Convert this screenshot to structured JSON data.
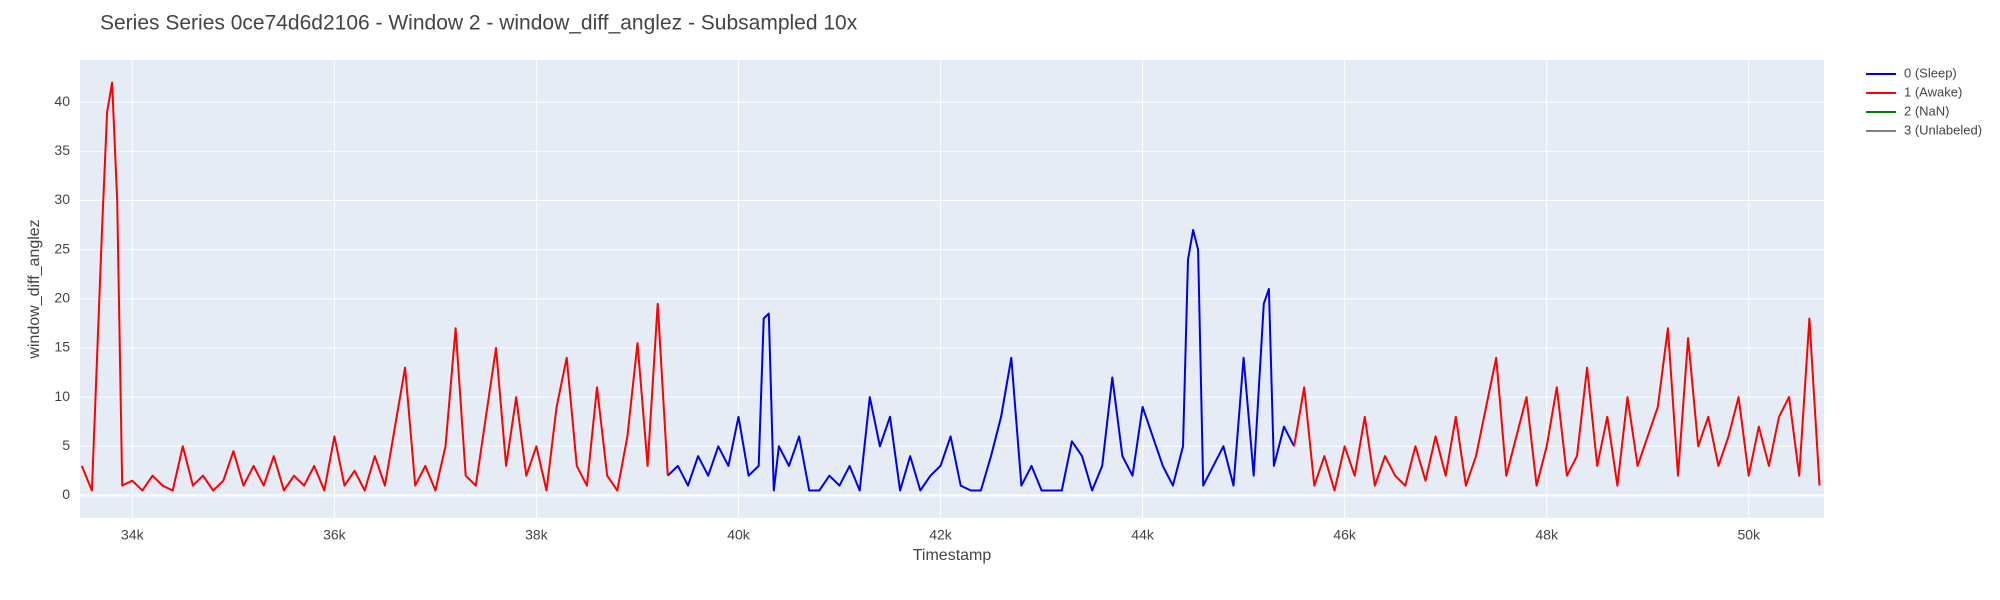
{
  "chart_data": {
    "type": "line",
    "title": "Series Series 0ce74d6d2106 - Window 2 - window_diff_anglez - Subsampled 10x",
    "x_label": "Timestamp",
    "y_label": "window_diff_anglez",
    "xlim": [
      33482,
      50745
    ],
    "ylim": [
      -2.3,
      44.3
    ],
    "xticks": [
      {
        "value": 34000,
        "label": "34k"
      },
      {
        "value": 36000,
        "label": "36k"
      },
      {
        "value": 38000,
        "label": "38k"
      },
      {
        "value": 40000,
        "label": "40k"
      },
      {
        "value": 42000,
        "label": "42k"
      },
      {
        "value": 44000,
        "label": "44k"
      },
      {
        "value": 46000,
        "label": "46k"
      },
      {
        "value": 48000,
        "label": "48k"
      },
      {
        "value": 50000,
        "label": "50k"
      }
    ],
    "yticks": [
      0,
      5,
      10,
      15,
      20,
      25,
      30,
      35,
      40
    ],
    "grid": true,
    "series": [
      {
        "name": "0 (Sleep)",
        "color": "#0000ee",
        "x": [
          39300,
          39400,
          39500,
          39600,
          39700,
          39800,
          39900,
          40000,
          40100,
          40200,
          40250,
          40300,
          40350,
          40400,
          40500,
          40600,
          40700,
          40800,
          40900,
          41000,
          41100,
          41200,
          41300,
          41400,
          41500,
          41600,
          41700,
          41800,
          41900,
          42000,
          42100,
          42200,
          42300,
          42400,
          42500,
          42600,
          42700,
          42800,
          42900,
          43000,
          43100,
          43200,
          43300,
          43400,
          43500,
          43600,
          43700,
          43800,
          43900,
          44000,
          44100,
          44200,
          44300,
          44400,
          44450,
          44500,
          44550,
          44600,
          44700,
          44800,
          44900,
          45000,
          45100,
          45200,
          45250,
          45300,
          45400,
          45500
        ],
        "values": [
          2,
          3,
          1,
          4,
          2,
          5,
          3,
          8,
          2,
          3,
          18,
          18.5,
          0.5,
          5,
          3,
          6,
          0.5,
          0.5,
          2,
          1,
          3,
          0.5,
          10,
          5,
          8,
          0.5,
          4,
          0.5,
          2,
          3,
          6,
          1,
          0.5,
          0.5,
          4,
          8,
          14,
          1,
          3,
          0.5,
          0.5,
          0.5,
          5.5,
          4,
          0.5,
          3,
          12,
          4,
          2,
          9,
          6,
          3,
          1,
          5,
          24,
          27,
          25,
          1,
          3,
          5,
          1,
          14,
          2,
          19.5,
          21,
          3,
          7,
          5
        ]
      },
      {
        "name": "1 (Awake)",
        "color": "#ff0000",
        "x": [
          33500,
          33600,
          33700,
          33750,
          33800,
          33850,
          33900,
          34000,
          34100,
          34200,
          34300,
          34400,
          34500,
          34600,
          34700,
          34800,
          34900,
          35000,
          35100,
          35200,
          35300,
          35400,
          35500,
          35600,
          35700,
          35800,
          35900,
          36000,
          36100,
          36200,
          36300,
          36400,
          36500,
          36600,
          36700,
          36800,
          36900,
          37000,
          37100,
          37200,
          37300,
          37400,
          37500,
          37600,
          37700,
          37800,
          37900,
          38000,
          38100,
          38200,
          38300,
          38400,
          38500,
          38600,
          38700,
          38800,
          38900,
          39000,
          39100,
          39200,
          39300,
          42000,
          45500,
          45600,
          45700,
          45800,
          45900,
          46000,
          46100,
          46200,
          46300,
          46400,
          46500,
          46600,
          46700,
          46800,
          46900,
          47000,
          47100,
          47200,
          47300,
          47400,
          47500,
          47600,
          47700,
          47800,
          47900,
          48000,
          48100,
          48200,
          48300,
          48400,
          48500,
          48600,
          48700,
          48800,
          48900,
          49000,
          49100,
          49200,
          49300,
          49400,
          49500,
          49600,
          49700,
          49800,
          49900,
          50000,
          50100,
          50200,
          50300,
          50400,
          50500,
          50600,
          50700
        ],
        "values": [
          3,
          0.5,
          27,
          39,
          42,
          30,
          1,
          1.5,
          0.5,
          2,
          1,
          0.5,
          5,
          1,
          2,
          0.5,
          1.5,
          4.5,
          1,
          3,
          1,
          4,
          0.5,
          2,
          1,
          3,
          0.5,
          6,
          1,
          2.5,
          0.5,
          4,
          1,
          7,
          13,
          1,
          3,
          0.5,
          5,
          17,
          2,
          1,
          8,
          15,
          3,
          10,
          2,
          5,
          0.5,
          9,
          14,
          3,
          1,
          11,
          2,
          0.5,
          6,
          15.5,
          3,
          19.5,
          2,
          null,
          5,
          11,
          1,
          4,
          0.5,
          5,
          2,
          8,
          1,
          4,
          2,
          1,
          5,
          1.5,
          6,
          2,
          8,
          1,
          4,
          9,
          14,
          2,
          6,
          10,
          1,
          5,
          11,
          2,
          4,
          13,
          3,
          8,
          1,
          10,
          3,
          6,
          9,
          17,
          2,
          16,
          5,
          8,
          3,
          6,
          10,
          2,
          7,
          3,
          8,
          10,
          2,
          18,
          1
        ]
      },
      {
        "name": "2 (NaN)",
        "color": "#008000",
        "x": [],
        "values": []
      },
      {
        "name": "3 (Unlabeled)",
        "color": "#808080",
        "x": [],
        "values": []
      }
    ]
  }
}
